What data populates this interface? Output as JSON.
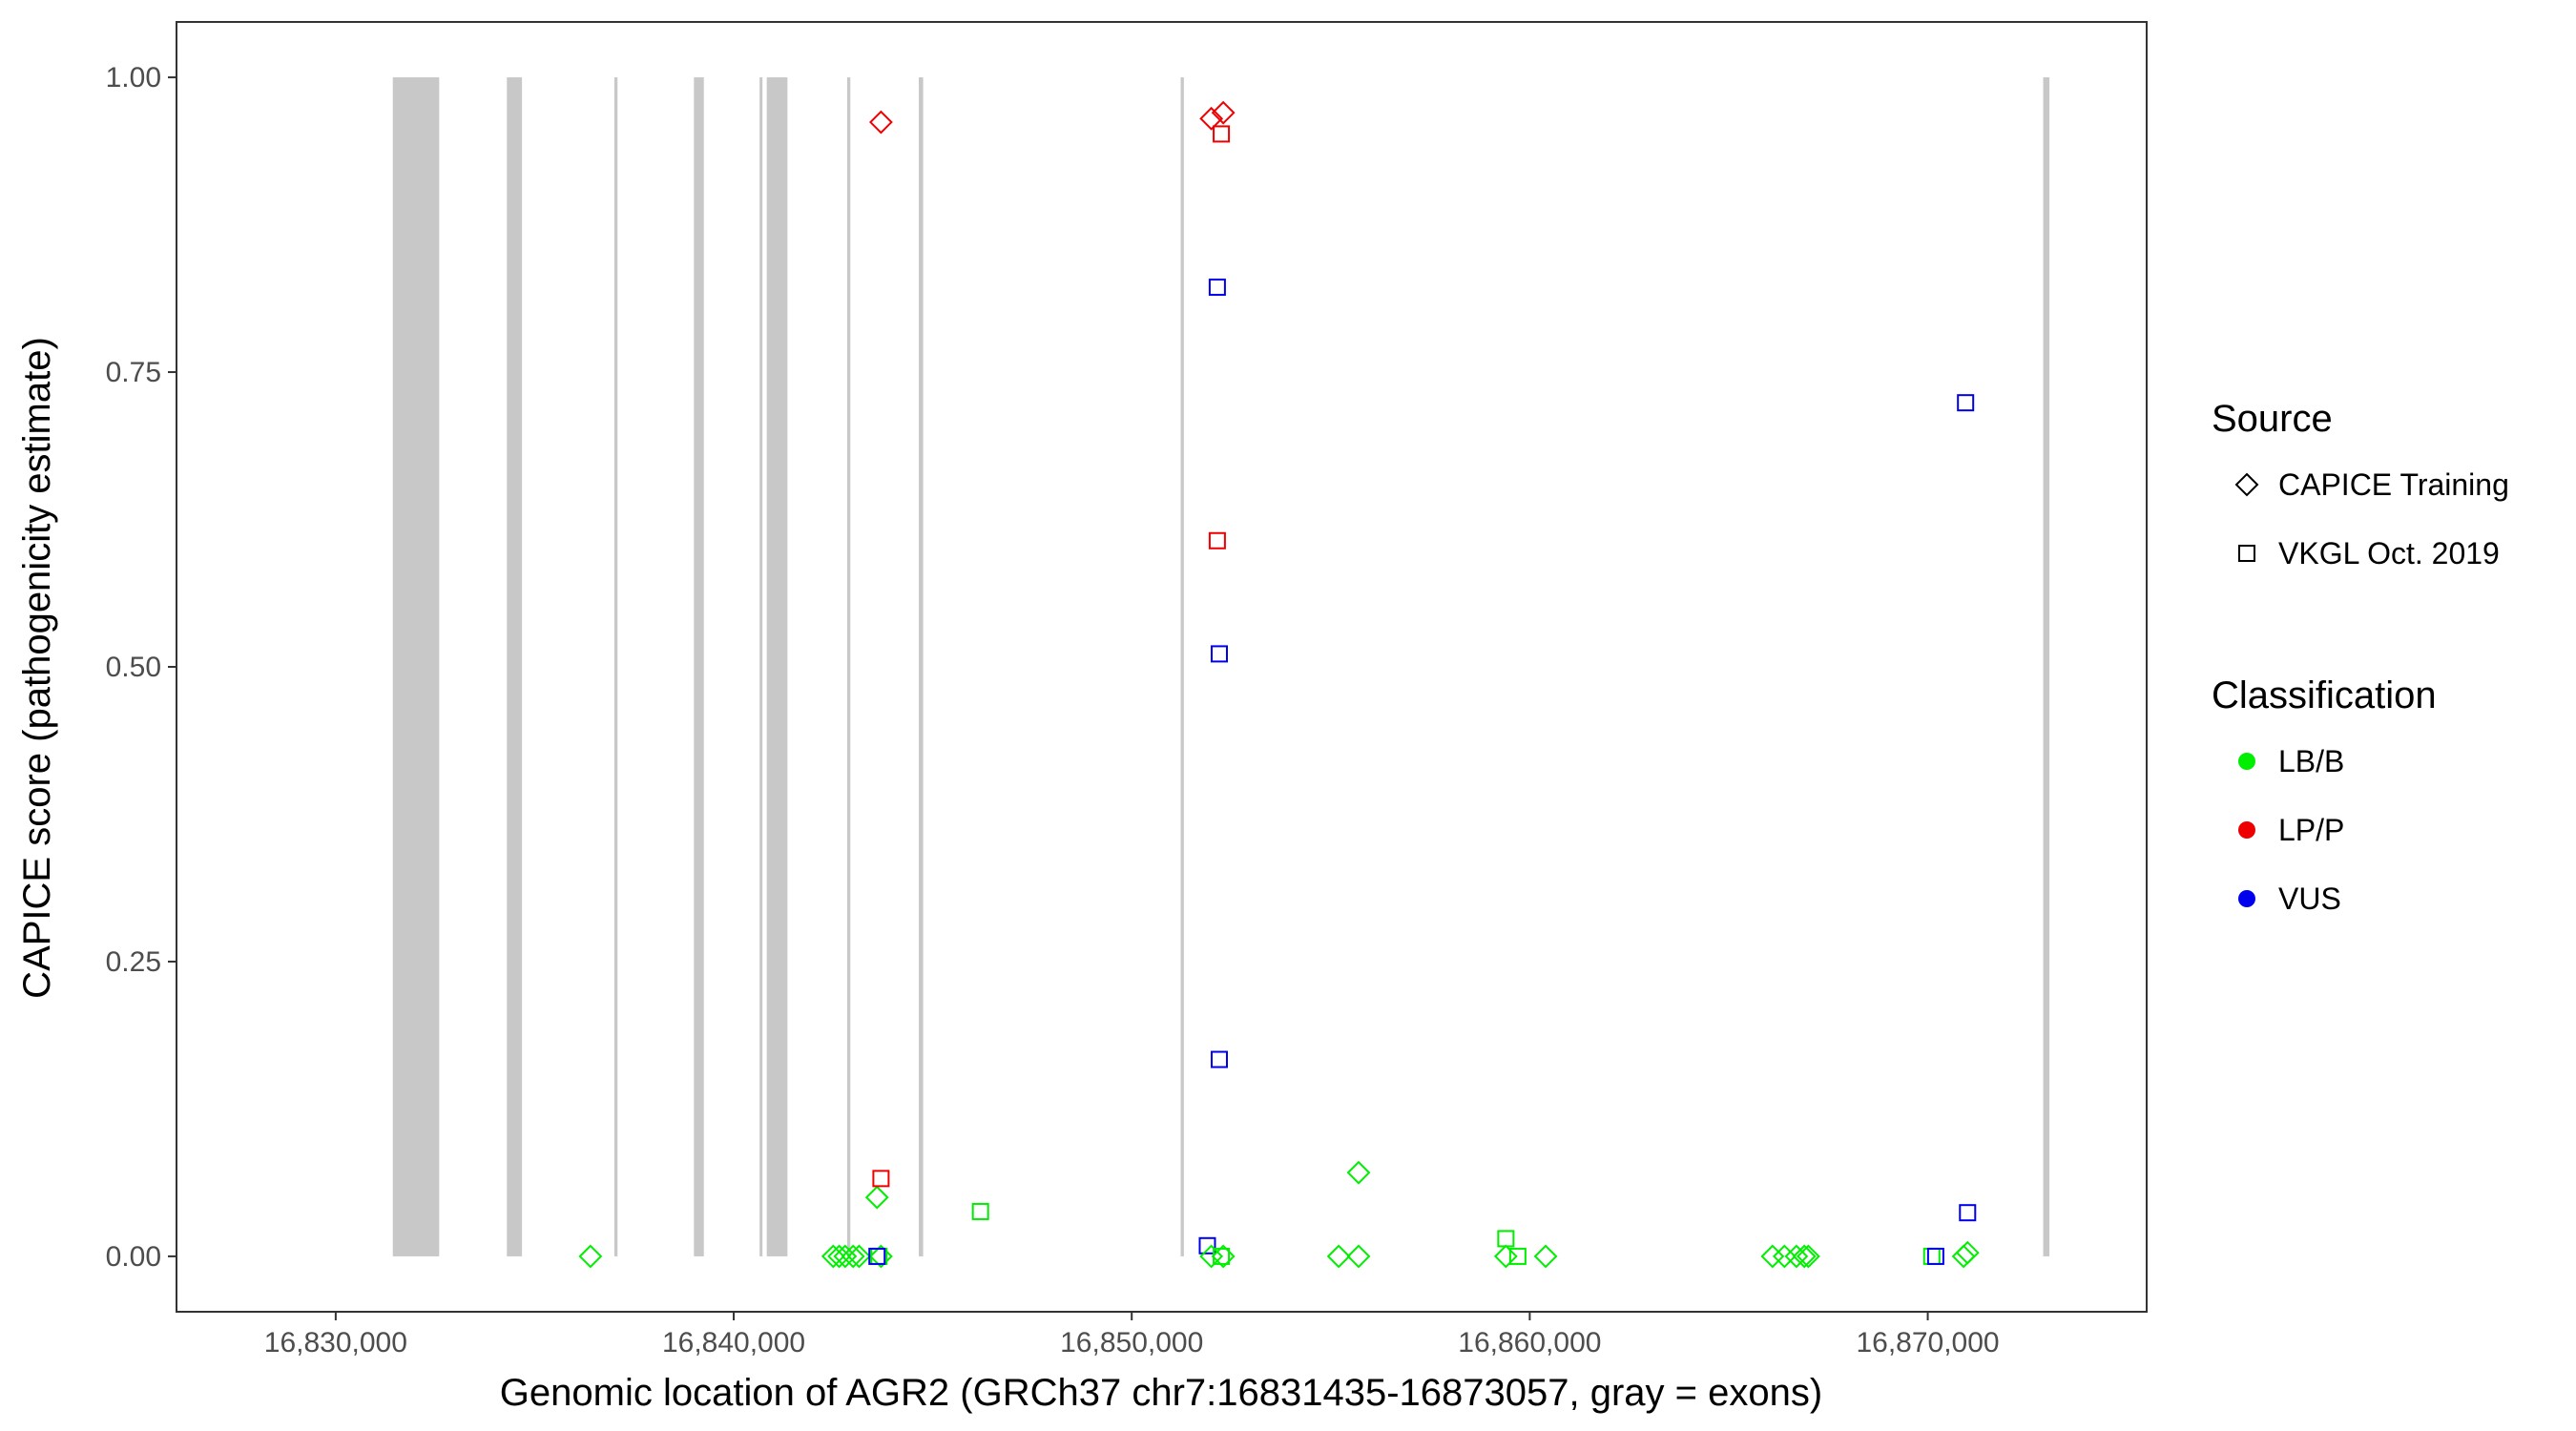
{
  "chart_data": {
    "type": "scatter",
    "title": "",
    "xlabel": "Genomic location of AGR2 (GRCh37 chr7:16831435-16873057, gray = exons)",
    "ylabel": "CAPICE score (pathogenicity estimate)",
    "xlim": [
      16826000,
      16875500
    ],
    "ylim": [
      -0.047,
      1.047
    ],
    "x_ticks": [
      16830000,
      16840000,
      16850000,
      16860000,
      16870000
    ],
    "x_tick_labels": [
      "16,830,000",
      "16,840,000",
      "16,850,000",
      "16,860,000",
      "16,870,000"
    ],
    "y_ticks": [
      0,
      0.25,
      0.5,
      0.75,
      1.0
    ],
    "y_tick_labels": [
      "0.00",
      "0.25",
      "0.50",
      "0.75",
      "1.00"
    ],
    "grid": false,
    "exons": [
      {
        "start": 16831435,
        "end": 16832600
      },
      {
        "start": 16834300,
        "end": 16834680
      },
      {
        "start": 16837000,
        "end": 16837080
      },
      {
        "start": 16839000,
        "end": 16839250
      },
      {
        "start": 16840650,
        "end": 16840720
      },
      {
        "start": 16840830,
        "end": 16841350
      },
      {
        "start": 16842850,
        "end": 16842930
      },
      {
        "start": 16844650,
        "end": 16844760
      },
      {
        "start": 16851230,
        "end": 16851310
      },
      {
        "start": 16872900,
        "end": 16873057
      }
    ],
    "colors": {
      "LB/B": "#00ee00",
      "LP/P": "#ee0000",
      "VUS": "#0000ee",
      "exon": "#c8c8c8"
    },
    "legend": {
      "position": "right",
      "source_title": "Source",
      "source_entries": [
        {
          "label": "CAPICE Training",
          "shape": "diamond"
        },
        {
          "label": "VKGL Oct. 2019",
          "shape": "square"
        }
      ],
      "class_title": "Classification",
      "class_entries": [
        {
          "label": "LB/B",
          "color": "#00ee00"
        },
        {
          "label": "LP/P",
          "color": "#ee0000"
        },
        {
          "label": "VUS",
          "color": "#0000ee"
        }
      ]
    },
    "points": [
      {
        "x": 16836400,
        "y": 0.0,
        "shape": "diamond",
        "cls": "LB/B"
      },
      {
        "x": 16842500,
        "y": 0.0,
        "shape": "diamond",
        "cls": "LB/B"
      },
      {
        "x": 16842650,
        "y": 0.0,
        "shape": "diamond",
        "cls": "LB/B"
      },
      {
        "x": 16842800,
        "y": 0.0,
        "shape": "diamond",
        "cls": "LB/B"
      },
      {
        "x": 16843000,
        "y": 0.0,
        "shape": "diamond",
        "cls": "LB/B"
      },
      {
        "x": 16843150,
        "y": 0.0,
        "shape": "diamond",
        "cls": "LB/B"
      },
      {
        "x": 16843700,
        "y": 0.0,
        "shape": "diamond",
        "cls": "LB/B"
      },
      {
        "x": 16843600,
        "y": 0.05,
        "shape": "diamond",
        "cls": "LB/B"
      },
      {
        "x": 16843700,
        "y": 0.962,
        "shape": "diamond",
        "cls": "LP/P"
      },
      {
        "x": 16843650,
        "y": 0.0,
        "shape": "square",
        "cls": "LB/B"
      },
      {
        "x": 16843700,
        "y": 0.066,
        "shape": "square",
        "cls": "LP/P"
      },
      {
        "x": 16843600,
        "y": 0.0,
        "shape": "square",
        "cls": "VUS"
      },
      {
        "x": 16846200,
        "y": 0.038,
        "shape": "square",
        "cls": "LB/B"
      },
      {
        "x": 16852000,
        "y": 0.965,
        "shape": "diamond",
        "cls": "LP/P"
      },
      {
        "x": 16852300,
        "y": 0.97,
        "shape": "diamond",
        "cls": "LP/P"
      },
      {
        "x": 16852250,
        "y": 0.952,
        "shape": "square",
        "cls": "LP/P"
      },
      {
        "x": 16852150,
        "y": 0.822,
        "shape": "square",
        "cls": "VUS"
      },
      {
        "x": 16852150,
        "y": 0.607,
        "shape": "square",
        "cls": "LP/P"
      },
      {
        "x": 16852200,
        "y": 0.511,
        "shape": "square",
        "cls": "VUS"
      },
      {
        "x": 16852200,
        "y": 0.167,
        "shape": "square",
        "cls": "VUS"
      },
      {
        "x": 16851900,
        "y": 0.009,
        "shape": "square",
        "cls": "VUS"
      },
      {
        "x": 16852000,
        "y": 0.0,
        "shape": "diamond",
        "cls": "LB/B"
      },
      {
        "x": 16852300,
        "y": 0.0,
        "shape": "diamond",
        "cls": "LB/B"
      },
      {
        "x": 16852250,
        "y": 0.0,
        "shape": "square",
        "cls": "LB/B"
      },
      {
        "x": 16855200,
        "y": 0.0,
        "shape": "diamond",
        "cls": "LB/B"
      },
      {
        "x": 16855700,
        "y": 0.0,
        "shape": "diamond",
        "cls": "LB/B"
      },
      {
        "x": 16855700,
        "y": 0.071,
        "shape": "diamond",
        "cls": "LB/B"
      },
      {
        "x": 16859400,
        "y": 0.015,
        "shape": "square",
        "cls": "LB/B"
      },
      {
        "x": 16859400,
        "y": 0.0,
        "shape": "diamond",
        "cls": "LB/B"
      },
      {
        "x": 16859700,
        "y": 0.0,
        "shape": "square",
        "cls": "LB/B"
      },
      {
        "x": 16860400,
        "y": 0.0,
        "shape": "diamond",
        "cls": "LB/B"
      },
      {
        "x": 16866100,
        "y": 0.0,
        "shape": "diamond",
        "cls": "LB/B"
      },
      {
        "x": 16866400,
        "y": 0.0,
        "shape": "diamond",
        "cls": "LB/B"
      },
      {
        "x": 16866700,
        "y": 0.0,
        "shape": "diamond",
        "cls": "LB/B"
      },
      {
        "x": 16866900,
        "y": 0.0,
        "shape": "diamond",
        "cls": "LB/B"
      },
      {
        "x": 16867000,
        "y": 0.0,
        "shape": "diamond",
        "cls": "LB/B"
      },
      {
        "x": 16870100,
        "y": 0.0,
        "shape": "square",
        "cls": "LB/B"
      },
      {
        "x": 16870200,
        "y": 0.0,
        "shape": "square",
        "cls": "VUS"
      },
      {
        "x": 16870900,
        "y": 0.0,
        "shape": "diamond",
        "cls": "LB/B"
      },
      {
        "x": 16871000,
        "y": 0.003,
        "shape": "diamond",
        "cls": "LB/B"
      },
      {
        "x": 16870950,
        "y": 0.724,
        "shape": "square",
        "cls": "VUS"
      },
      {
        "x": 16871000,
        "y": 0.037,
        "shape": "square",
        "cls": "VUS"
      }
    ]
  }
}
